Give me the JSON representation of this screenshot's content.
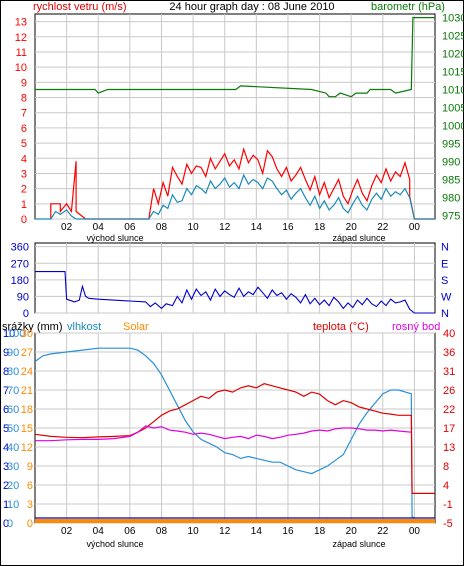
{
  "title": "24 hour graph day : 08 June 2010",
  "labels": {
    "wind_speed": "rychlost vetru (m/s)",
    "pressure": "barometr (hPa)",
    "rain": "srážky (mm)",
    "humidity": "vlhkost",
    "solar": "Solar",
    "temperature": "teplota (°C)",
    "dewpoint": "rosný bod",
    "sunrise": "východ slunce",
    "sunset": "západ slunce"
  },
  "colors": {
    "wind": "#ff0000",
    "gust_avg": "#1a8cb8",
    "pressure": "#0a7a0a",
    "direction": "#0000cc",
    "humidity": "#2a8fd8",
    "solar": "#ff8a00",
    "temperature": "#e00000",
    "dewpoint": "#e000e0",
    "rain": "#0000cc",
    "grid": "#c9c9c9"
  },
  "chart_data": [
    {
      "type": "line",
      "title": "24 hour graph day : 08 June 2010",
      "xlabel": "",
      "x_ticks": [
        "02",
        "04",
        "06",
        "08",
        "10",
        "12",
        "14",
        "16",
        "18",
        "20",
        "22",
        "00"
      ],
      "x_range_hours": [
        0,
        25.3
      ],
      "left_axis": {
        "label": "rychlost vetru (m/s)",
        "range": [
          0,
          13.5
        ],
        "ticks": [
          0,
          1,
          2,
          3,
          4,
          5,
          6,
          7,
          8,
          9,
          10,
          11,
          12,
          13
        ]
      },
      "right_axis": {
        "label": "barometr (hPa)",
        "range": [
          974,
          1031
        ],
        "ticks": [
          975,
          980,
          985,
          990,
          995,
          1000,
          1005,
          1010,
          1015,
          1020,
          1025,
          1030
        ]
      },
      "series": [
        {
          "name": "wind speed",
          "color": "#ff0000",
          "axis": "left",
          "x": [
            1.0,
            1.0,
            1.6,
            1.6,
            2.0,
            2.3,
            2.6,
            2.6,
            3.2,
            7.2,
            7.5,
            7.8,
            8.1,
            8.4,
            8.7,
            9.0,
            9.3,
            9.6,
            9.9,
            10.2,
            10.5,
            10.8,
            11.1,
            11.4,
            11.7,
            12.0,
            12.3,
            12.6,
            12.9,
            13.2,
            13.5,
            13.8,
            14.1,
            14.4,
            14.7,
            15.0,
            15.3,
            15.6,
            15.9,
            16.2,
            16.5,
            16.8,
            17.1,
            17.4,
            17.7,
            18.0,
            18.3,
            18.6,
            18.9,
            19.2,
            19.5,
            19.8,
            20.1,
            20.4,
            20.7,
            21.0,
            21.3,
            21.6,
            21.9,
            22.2,
            22.5,
            22.8,
            23.1,
            23.4,
            23.7,
            23.7,
            24.0,
            25.3
          ],
          "values": [
            0,
            1,
            1,
            0.5,
            1,
            0.5,
            3.8,
            0.5,
            0,
            0,
            2,
            1,
            2.4,
            1.5,
            3.4,
            2.8,
            2.3,
            3.6,
            3.0,
            3.5,
            3.4,
            2.8,
            4.0,
            3.3,
            3.8,
            4.3,
            3.5,
            3.9,
            3.3,
            4.6,
            3.7,
            4.2,
            3.9,
            3.0,
            4.5,
            4.1,
            3.3,
            2.8,
            3.4,
            2.5,
            2.9,
            3.4,
            2.6,
            1.9,
            2.8,
            1.6,
            2.4,
            1.4,
            2.0,
            2.6,
            1.5,
            1.0,
            1.9,
            2.6,
            1.7,
            1.2,
            2.2,
            2.9,
            2.4,
            3.3,
            2.5,
            3.1,
            2.8,
            3.7,
            2.6,
            1.5,
            0,
            0
          ]
        },
        {
          "name": "average wind",
          "color": "#1a8cb8",
          "axis": "left",
          "x": [
            0,
            1.0,
            1.3,
            1.6,
            2.0,
            2.3,
            2.6,
            7.2,
            7.5,
            7.8,
            8.1,
            8.4,
            8.7,
            9.0,
            9.3,
            9.6,
            9.9,
            10.2,
            10.5,
            10.8,
            11.1,
            11.4,
            11.7,
            12.0,
            12.3,
            12.6,
            12.9,
            13.2,
            13.5,
            13.8,
            14.1,
            14.4,
            14.7,
            15.0,
            15.3,
            15.6,
            15.9,
            16.2,
            16.5,
            16.8,
            17.1,
            17.4,
            17.7,
            18.0,
            18.3,
            18.6,
            18.9,
            19.2,
            19.5,
            19.8,
            20.1,
            20.4,
            20.7,
            21.0,
            21.3,
            21.6,
            21.9,
            22.2,
            22.5,
            22.8,
            23.1,
            23.4,
            23.7,
            24.0,
            25.3
          ],
          "values": [
            0,
            0,
            0.5,
            0.3,
            0.6,
            0.2,
            0,
            0,
            0.5,
            0.3,
            0.9,
            0.7,
            1.6,
            1.1,
            1.2,
            2.0,
            1.6,
            2.2,
            2.0,
            1.7,
            2.5,
            2.0,
            2.3,
            2.7,
            2.1,
            2.4,
            2.0,
            2.9,
            2.3,
            2.6,
            2.4,
            2.0,
            2.7,
            2.5,
            2.0,
            1.6,
            1.9,
            1.3,
            1.7,
            2.0,
            1.4,
            0.9,
            1.5,
            0.7,
            1.2,
            0.6,
            0.9,
            1.4,
            0.7,
            0.4,
            1.0,
            1.5,
            0.9,
            0.6,
            1.3,
            1.7,
            1.3,
            2.0,
            1.5,
            1.8,
            1.6,
            2.0,
            1.4,
            0,
            0
          ]
        },
        {
          "name": "pressure",
          "color": "#0a7a0a",
          "axis": "right",
          "x": [
            0,
            3.8,
            4.0,
            4.6,
            9.0,
            12.7,
            13.0,
            17.5,
            18.4,
            18.6,
            19.0,
            19.3,
            20.0,
            20.3,
            21.0,
            21.2,
            22.5,
            22.8,
            23.8,
            23.9,
            24.0,
            25.3
          ],
          "values": [
            1010,
            1010,
            1009,
            1010,
            1010,
            1010,
            1011,
            1010,
            1009,
            1008,
            1008,
            1009,
            1008,
            1009,
            1009,
            1010,
            1010,
            1009,
            1010,
            1030,
            1030,
            1030
          ]
        }
      ]
    },
    {
      "type": "line",
      "title": "",
      "xlabel": "",
      "x_ticks": [
        "02",
        "04",
        "06",
        "08",
        "10",
        "12",
        "14",
        "16",
        "18",
        "20",
        "22",
        "00"
      ],
      "x_range_hours": [
        0,
        25.3
      ],
      "left_axis": {
        "label": "",
        "range": [
          0,
          380
        ],
        "ticks": [
          0,
          90,
          180,
          270,
          360
        ]
      },
      "right_axis": {
        "label": "",
        "tick_labels": [
          "N",
          "W",
          "S",
          "E",
          "N"
        ]
      },
      "series": [
        {
          "name": "wind direction",
          "color": "#0000cc",
          "axis": "left",
          "x": [
            0,
            1.9,
            2.0,
            2.5,
            2.8,
            3.0,
            3.2,
            3.4,
            4.0,
            6.0,
            7.0,
            7.3,
            7.6,
            8.0,
            8.3,
            8.7,
            9.0,
            9.3,
            9.6,
            9.9,
            10.2,
            10.5,
            10.8,
            11.1,
            11.4,
            11.7,
            12.0,
            12.3,
            12.6,
            12.9,
            13.2,
            13.5,
            13.8,
            14.1,
            14.4,
            14.7,
            15.0,
            15.3,
            15.6,
            15.9,
            16.2,
            16.5,
            16.8,
            17.1,
            17.4,
            17.7,
            18.0,
            18.3,
            18.6,
            18.9,
            19.2,
            19.5,
            19.8,
            20.1,
            20.4,
            20.7,
            21.0,
            21.3,
            21.6,
            21.9,
            22.2,
            22.5,
            22.8,
            23.1,
            23.4,
            23.7,
            24.0,
            25.3
          ],
          "values": [
            225,
            225,
            75,
            60,
            70,
            145,
            90,
            80,
            75,
            65,
            60,
            35,
            55,
            25,
            50,
            40,
            90,
            55,
            125,
            75,
            130,
            95,
            115,
            70,
            130,
            90,
            120,
            100,
            85,
            135,
            90,
            115,
            100,
            140,
            110,
            80,
            125,
            95,
            110,
            75,
            105,
            85,
            55,
            100,
            50,
            80,
            45,
            70,
            40,
            85,
            60,
            25,
            55,
            30,
            70,
            45,
            80,
            50,
            35,
            65,
            40,
            75,
            55,
            60,
            70,
            20,
            0,
            0
          ]
        }
      ]
    },
    {
      "type": "line",
      "title": "",
      "xlabel": "",
      "x_ticks": [
        "02",
        "04",
        "06",
        "08",
        "10",
        "12",
        "14",
        "16",
        "18",
        "20",
        "22",
        "00"
      ],
      "x_range_hours": [
        0,
        25.3
      ],
      "left_axis_rain": {
        "label": "srážky (mm)",
        "ticks": [
          0,
          1,
          2,
          3,
          4,
          5,
          6,
          7,
          8,
          9,
          10
        ]
      },
      "left_axis_humidity": {
        "label": "vlhkost",
        "range": [
          0,
          100
        ],
        "ticks": [
          0,
          10,
          20,
          30,
          40,
          50,
          60,
          70,
          80,
          90,
          100
        ]
      },
      "left_axis_solar": {
        "label": "Solar",
        "ticks": [
          0,
          3,
          6,
          9,
          12,
          15,
          18,
          21,
          24,
          27,
          30
        ]
      },
      "right_axis": {
        "label": "teplota (°C)",
        "range": [
          -5,
          40
        ],
        "ticks": [
          -5,
          -1,
          4,
          8,
          13,
          17,
          22,
          26,
          31,
          36,
          40
        ]
      },
      "series": [
        {
          "name": "humidity",
          "color": "#2a8fd8",
          "axis": "humidity",
          "x": [
            0,
            0.5,
            1.0,
            2.0,
            3.0,
            4.0,
            5.0,
            6.0,
            6.5,
            7.0,
            7.5,
            8.0,
            8.5,
            9.0,
            9.5,
            10.0,
            10.5,
            11.0,
            11.5,
            12.0,
            12.5,
            13.0,
            13.5,
            14.0,
            14.5,
            15.0,
            15.5,
            16.0,
            16.5,
            17.0,
            17.5,
            18.0,
            18.5,
            19.0,
            19.5,
            20.0,
            20.5,
            21.0,
            21.5,
            22.0,
            22.5,
            23.0,
            23.8,
            23.85,
            24.0
          ],
          "values": [
            85,
            88,
            89,
            90,
            91,
            92,
            92,
            92,
            91,
            88,
            84,
            78,
            70,
            62,
            54,
            48,
            44,
            42,
            40,
            37,
            36,
            34,
            35,
            34,
            33,
            32,
            32,
            30,
            28,
            27,
            26,
            28,
            30,
            33,
            36,
            44,
            52,
            58,
            63,
            68,
            70,
            70,
            68,
            3,
            3
          ]
        },
        {
          "name": "temperature",
          "color": "#e00000",
          "axis": "right",
          "x": [
            0,
            1.0,
            2.0,
            3.0,
            4.0,
            5.0,
            6.0,
            6.5,
            7.0,
            7.5,
            8.0,
            8.5,
            9.0,
            9.5,
            10.0,
            10.5,
            11.0,
            11.5,
            12.0,
            12.5,
            13.0,
            13.5,
            14.0,
            14.5,
            15.0,
            15.5,
            16.0,
            16.5,
            17.0,
            17.5,
            18.0,
            18.5,
            19.0,
            19.5,
            20.0,
            20.5,
            21.0,
            21.5,
            22.0,
            22.5,
            23.0,
            23.8,
            23.85,
            24.0,
            25.3
          ],
          "values": [
            16,
            15.5,
            15.3,
            15.2,
            15.4,
            15.5,
            15.7,
            16.5,
            17.5,
            19.0,
            20.5,
            21.5,
            22.0,
            23.0,
            24.0,
            25.0,
            24.5,
            26.0,
            26.5,
            26.0,
            27.0,
            27.5,
            27.0,
            28.0,
            27.5,
            27.0,
            26.5,
            26.0,
            25.0,
            26.0,
            25.5,
            24.0,
            23.0,
            24.0,
            23.5,
            22.5,
            22.0,
            21.5,
            21.0,
            20.8,
            20.5,
            20.5,
            2.0,
            2.0,
            2.0
          ]
        },
        {
          "name": "dewpoint",
          "color": "#e000e0",
          "axis": "right",
          "x": [
            0,
            1.0,
            2.0,
            3.0,
            4.0,
            5.0,
            6.0,
            6.5,
            7.0,
            7.5,
            8.0,
            8.5,
            9.0,
            9.5,
            10.0,
            10.5,
            11.0,
            11.5,
            12.0,
            12.5,
            13.0,
            13.5,
            14.0,
            14.5,
            15.0,
            15.5,
            16.0,
            16.5,
            17.0,
            17.5,
            18.0,
            18.5,
            19.0,
            19.5,
            20.0,
            20.5,
            21.0,
            21.5,
            22.0,
            22.5,
            23.0,
            23.8
          ],
          "values": [
            14.5,
            14.5,
            14.7,
            14.8,
            14.8,
            15.0,
            15.5,
            16.5,
            18.0,
            17.5,
            17.8,
            17.0,
            16.8,
            16.5,
            16.0,
            16.3,
            16.0,
            15.5,
            15.0,
            15.3,
            15.5,
            15.0,
            15.8,
            15.5,
            15.0,
            15.3,
            15.8,
            16.0,
            16.3,
            16.8,
            17.0,
            16.8,
            17.3,
            17.5,
            17.5,
            17.3,
            17.0,
            17.0,
            16.8,
            17.0,
            16.8,
            16.5
          ]
        },
        {
          "name": "rain",
          "color": "#0000cc",
          "axis": "rain",
          "x": [
            0,
            25.3
          ],
          "values": [
            0,
            0
          ]
        },
        {
          "name": "solar",
          "color": "#ff8a00",
          "axis": "solar",
          "x": [
            0,
            25.3
          ],
          "values": [
            0,
            0
          ]
        }
      ]
    }
  ]
}
